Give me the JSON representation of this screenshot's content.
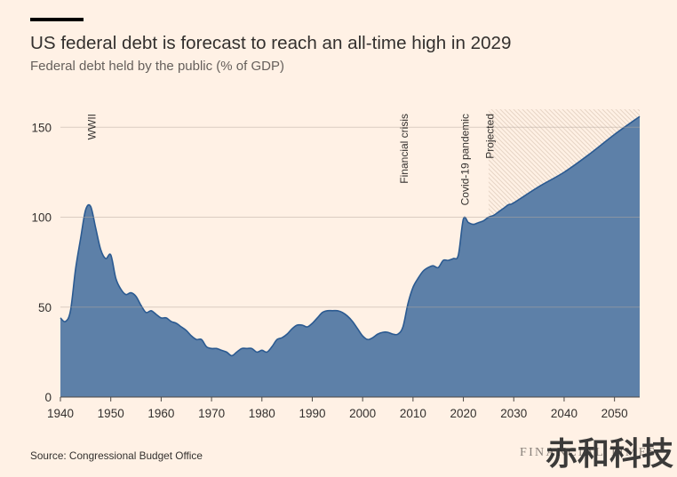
{
  "footer": {
    "source": "Source: Congressional Budget Office",
    "logo": "FINANCIAL TIMES",
    "watermark": "赤和科技"
  },
  "colors": {
    "background": "#fff1e5",
    "text": "#33302e",
    "area": "#5d80a8",
    "line": "#2b5a91",
    "grid": "#b5a89d",
    "axis": "#4d4845",
    "hatch": "#e6d4c5"
  },
  "chart_data": {
    "type": "area",
    "title": "US federal debt is forecast to reach an all-time high in 2029",
    "subtitle": "Federal debt held by the public (% of GDP)",
    "x": [
      1940,
      1941,
      1942,
      1943,
      1944,
      1945,
      1946,
      1947,
      1948,
      1949,
      1950,
      1951,
      1952,
      1953,
      1954,
      1955,
      1956,
      1957,
      1958,
      1959,
      1960,
      1961,
      1962,
      1963,
      1964,
      1965,
      1966,
      1967,
      1968,
      1969,
      1970,
      1971,
      1972,
      1973,
      1974,
      1975,
      1976,
      1977,
      1978,
      1979,
      1980,
      1981,
      1982,
      1983,
      1984,
      1985,
      1986,
      1987,
      1988,
      1989,
      1990,
      1991,
      1992,
      1993,
      1994,
      1995,
      1996,
      1997,
      1998,
      1999,
      2000,
      2001,
      2002,
      2003,
      2004,
      2005,
      2006,
      2007,
      2008,
      2009,
      2010,
      2011,
      2012,
      2013,
      2014,
      2015,
      2016,
      2017,
      2018,
      2019,
      2020,
      2021,
      2022,
      2023,
      2024,
      2025,
      2026,
      2027,
      2028,
      2029,
      2030,
      2035,
      2040,
      2045,
      2050,
      2055
    ],
    "series": [
      {
        "values": [
          44,
          42,
          48,
          71,
          88,
          104,
          106,
          94,
          82,
          77,
          79,
          66,
          60,
          57,
          58,
          56,
          51,
          47,
          48,
          46,
          44,
          44,
          42,
          41,
          39,
          37,
          34,
          32,
          32,
          28,
          27,
          27,
          26,
          25,
          23,
          25,
          27,
          27,
          27,
          25,
          26,
          25,
          28,
          32,
          33,
          35,
          38,
          40,
          40,
          39,
          41,
          44,
          47,
          48,
          48,
          48,
          47,
          45,
          42,
          38,
          34,
          32,
          33,
          35,
          36,
          36,
          35,
          35,
          39,
          52,
          61,
          66,
          70,
          72,
          73,
          72,
          76,
          76,
          77,
          79,
          99,
          97,
          96,
          97,
          98,
          100,
          101,
          103,
          105,
          107,
          108,
          117,
          125,
          135,
          146,
          156
        ]
      }
    ],
    "xlim": [
      1940,
      2055
    ],
    "ylim": [
      0,
      160
    ],
    "x_ticks": [
      1940,
      1950,
      1960,
      1970,
      1980,
      1990,
      2000,
      2010,
      2020,
      2030,
      2040,
      2050
    ],
    "y_ticks": [
      0,
      50,
      100,
      150
    ],
    "grid": "horizontal",
    "projected_from": 2025,
    "annotations": [
      {
        "x": 1946,
        "text": "WWII"
      },
      {
        "x": 2008,
        "text": "Financial crisis"
      },
      {
        "x": 2020,
        "text": "Covid-19 pandemic"
      },
      {
        "x": 2025,
        "text": "Projected"
      }
    ]
  }
}
